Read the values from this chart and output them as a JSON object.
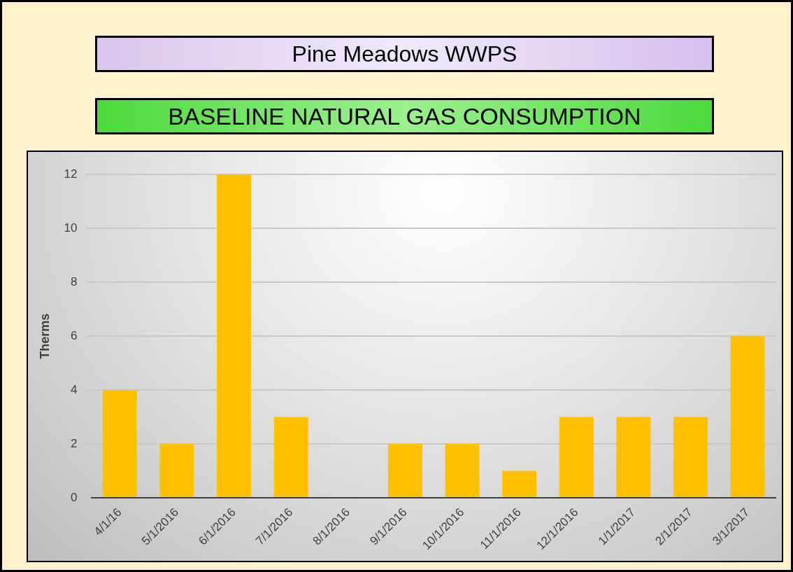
{
  "chart_data": {
    "type": "bar",
    "title": "Pine Meadows WWPS",
    "subtitle": "BASELINE NATURAL GAS CONSUMPTION",
    "ylabel": "Therms",
    "categories": [
      "4/1/16",
      "5/1/2016",
      "6/1/2016",
      "7/1/2016",
      "8/1/2016",
      "9/1/2016",
      "10/1/2016",
      "11/1/2016",
      "12/1/2016",
      "1/1/2017",
      "2/1/2017",
      "3/1/2017"
    ],
    "values": [
      4,
      2,
      12,
      3,
      0,
      2,
      2,
      1,
      3,
      3,
      3,
      6
    ],
    "color": "#ffc000",
    "ylim": [
      0,
      12
    ],
    "yticks": [
      0,
      2,
      4,
      6,
      8,
      10,
      12
    ],
    "grid": "y"
  }
}
